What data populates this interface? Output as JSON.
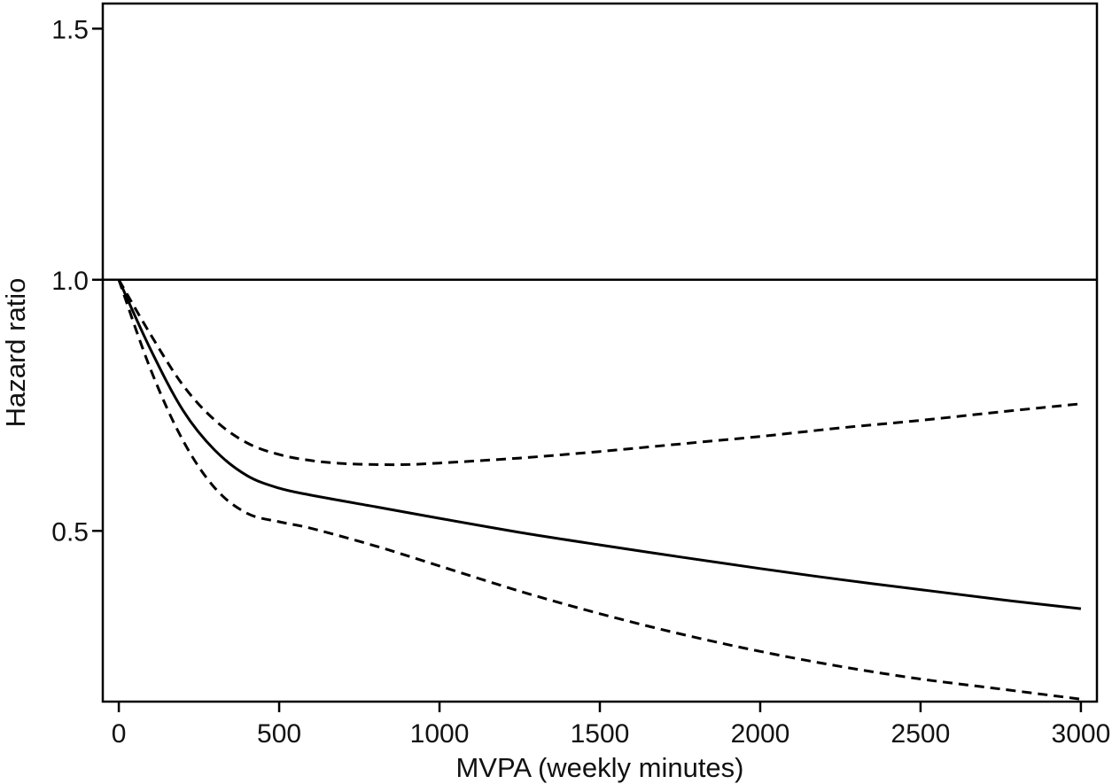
{
  "chart_data": {
    "type": "line",
    "xlabel": "MVPA (weekly minutes)",
    "ylabel": "Hazard ratio",
    "xlim": [
      -50,
      3050
    ],
    "ylim": [
      0.16,
      1.55
    ],
    "x_ticks": [
      0,
      500,
      1000,
      1500,
      2000,
      2500,
      3000
    ],
    "x_tick_labels": [
      "0",
      "500",
      "1000",
      "1500",
      "2000",
      "2500",
      "3000"
    ],
    "y_ticks": [
      0.5,
      1.0,
      1.5
    ],
    "y_tick_labels": [
      "0.5",
      "1.0",
      "1.5"
    ],
    "grid": false,
    "legend": "none",
    "reference_line": {
      "y": 1.0,
      "style": "solid"
    },
    "series": [
      {
        "style": "solid",
        "color": "#000000",
        "x": [
          0,
          100,
          200,
          300,
          400,
          500,
          600,
          800,
          1000,
          1250,
          1500,
          1750,
          2000,
          2250,
          2500,
          2750,
          3000
        ],
        "y": [
          1.0,
          0.86,
          0.74,
          0.66,
          0.61,
          0.585,
          0.571,
          0.548,
          0.525,
          0.497,
          0.472,
          0.448,
          0.425,
          0.403,
          0.383,
          0.363,
          0.345
        ]
      },
      {
        "style": "dashed",
        "color": "#000000",
        "x": [
          0,
          100,
          200,
          300,
          400,
          500,
          600,
          700,
          800,
          900,
          1000,
          1250,
          1500,
          1750,
          2000,
          2250,
          2500,
          2750,
          3000
        ],
        "y": [
          1.0,
          0.89,
          0.79,
          0.72,
          0.675,
          0.652,
          0.64,
          0.634,
          0.632,
          0.632,
          0.635,
          0.645,
          0.658,
          0.673,
          0.688,
          0.705,
          0.72,
          0.737,
          0.753
        ]
      },
      {
        "style": "dashed",
        "color": "#000000",
        "x": [
          0,
          100,
          200,
          300,
          400,
          500,
          600,
          800,
          1000,
          1250,
          1500,
          1750,
          2000,
          2250,
          2500,
          2750,
          3000
        ],
        "y": [
          1.0,
          0.82,
          0.68,
          0.585,
          0.535,
          0.518,
          0.505,
          0.47,
          0.43,
          0.38,
          0.335,
          0.295,
          0.26,
          0.23,
          0.205,
          0.185,
          0.165
        ]
      }
    ]
  }
}
